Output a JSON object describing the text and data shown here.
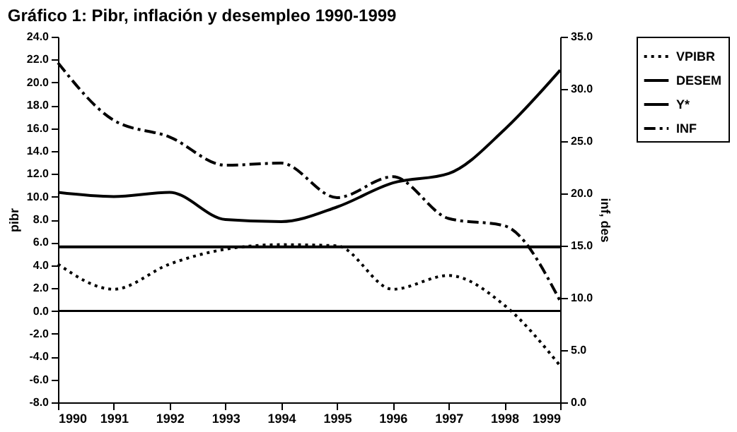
{
  "chart_data": {
    "type": "line",
    "title": "Gráfico 1: Pibr, inflación y desempleo 1990-1999",
    "ylabel": "pibr",
    "y2label": "inf, des",
    "x": [
      1990,
      1991,
      1992,
      1993,
      1994,
      1995,
      1996,
      1997,
      1998,
      1999
    ],
    "series": [
      {
        "name": "VPIBR",
        "color": "#000000",
        "line_style": "dotted",
        "values": [
          4.1,
          1.9,
          4.1,
          5.4,
          5.8,
          5.7,
          1.9,
          3.1,
          0.5,
          -4.8
        ]
      },
      {
        "name": "DESEM",
        "color": "#000000",
        "line_style": "solid",
        "axis": "y2",
        "values": [
          20.1,
          19.7,
          20.1,
          17.5,
          17.3,
          18.7,
          21.0,
          21.9,
          26.1,
          31.8
        ]
      },
      {
        "name": "Y*",
        "color": "#000000",
        "line_style": "solid",
        "values": [
          5.6,
          5.6,
          5.6,
          5.6,
          5.6,
          5.6,
          5.6,
          5.6,
          5.6,
          5.6
        ]
      },
      {
        "name": "INF",
        "color": "#000000",
        "line_style": "dashed",
        "axis": "y2",
        "values": [
          32.5,
          27.0,
          25.4,
          22.7,
          22.9,
          19.6,
          21.6,
          17.6,
          16.9,
          9.7
        ]
      }
    ],
    "xlim": [
      1990,
      1999
    ],
    "xticks": [
      1990,
      1991,
      1992,
      1993,
      1994,
      1995,
      1996,
      1997,
      1998,
      1999
    ],
    "ylim": [
      -8,
      24
    ],
    "yticks": [
      {
        "value": -8,
        "label": "-8.0"
      },
      {
        "value": -6,
        "label": "-6.0"
      },
      {
        "value": -4,
        "label": "-4.0"
      },
      {
        "value": -2,
        "label": "-2.0"
      },
      {
        "value": 0,
        "label": "0.0"
      },
      {
        "value": 2,
        "label": "2.0"
      },
      {
        "value": 4,
        "label": "4.0"
      },
      {
        "value": 6,
        "label": "6.0"
      },
      {
        "value": 8,
        "label": "8.0"
      },
      {
        "value": 10,
        "label": "10.0"
      },
      {
        "value": 12,
        "label": "12.0"
      },
      {
        "value": 14,
        "label": "14.0"
      },
      {
        "value": 16,
        "label": "16.0"
      },
      {
        "value": 18,
        "label": "18.0"
      },
      {
        "value": 20,
        "label": "20.0"
      },
      {
        "value": 22,
        "label": "22.0"
      },
      {
        "value": 24,
        "label": "24.0"
      }
    ],
    "y2lim": [
      0,
      35
    ],
    "y2ticks": [
      {
        "value": 0,
        "label": "0.0"
      },
      {
        "value": 5,
        "label": "5.0"
      },
      {
        "value": 10,
        "label": "10.0"
      },
      {
        "value": 15,
        "label": "15.0"
      },
      {
        "value": 20,
        "label": "20.0"
      },
      {
        "value": 25,
        "label": "25.0"
      },
      {
        "value": 30,
        "label": "30.0"
      },
      {
        "value": 35,
        "label": "35.0"
      }
    ],
    "ref_lines": [
      {
        "axis": "y",
        "value": 0,
        "color": "#000000"
      }
    ],
    "grid": false,
    "legend": "right",
    "marker": "none"
  }
}
